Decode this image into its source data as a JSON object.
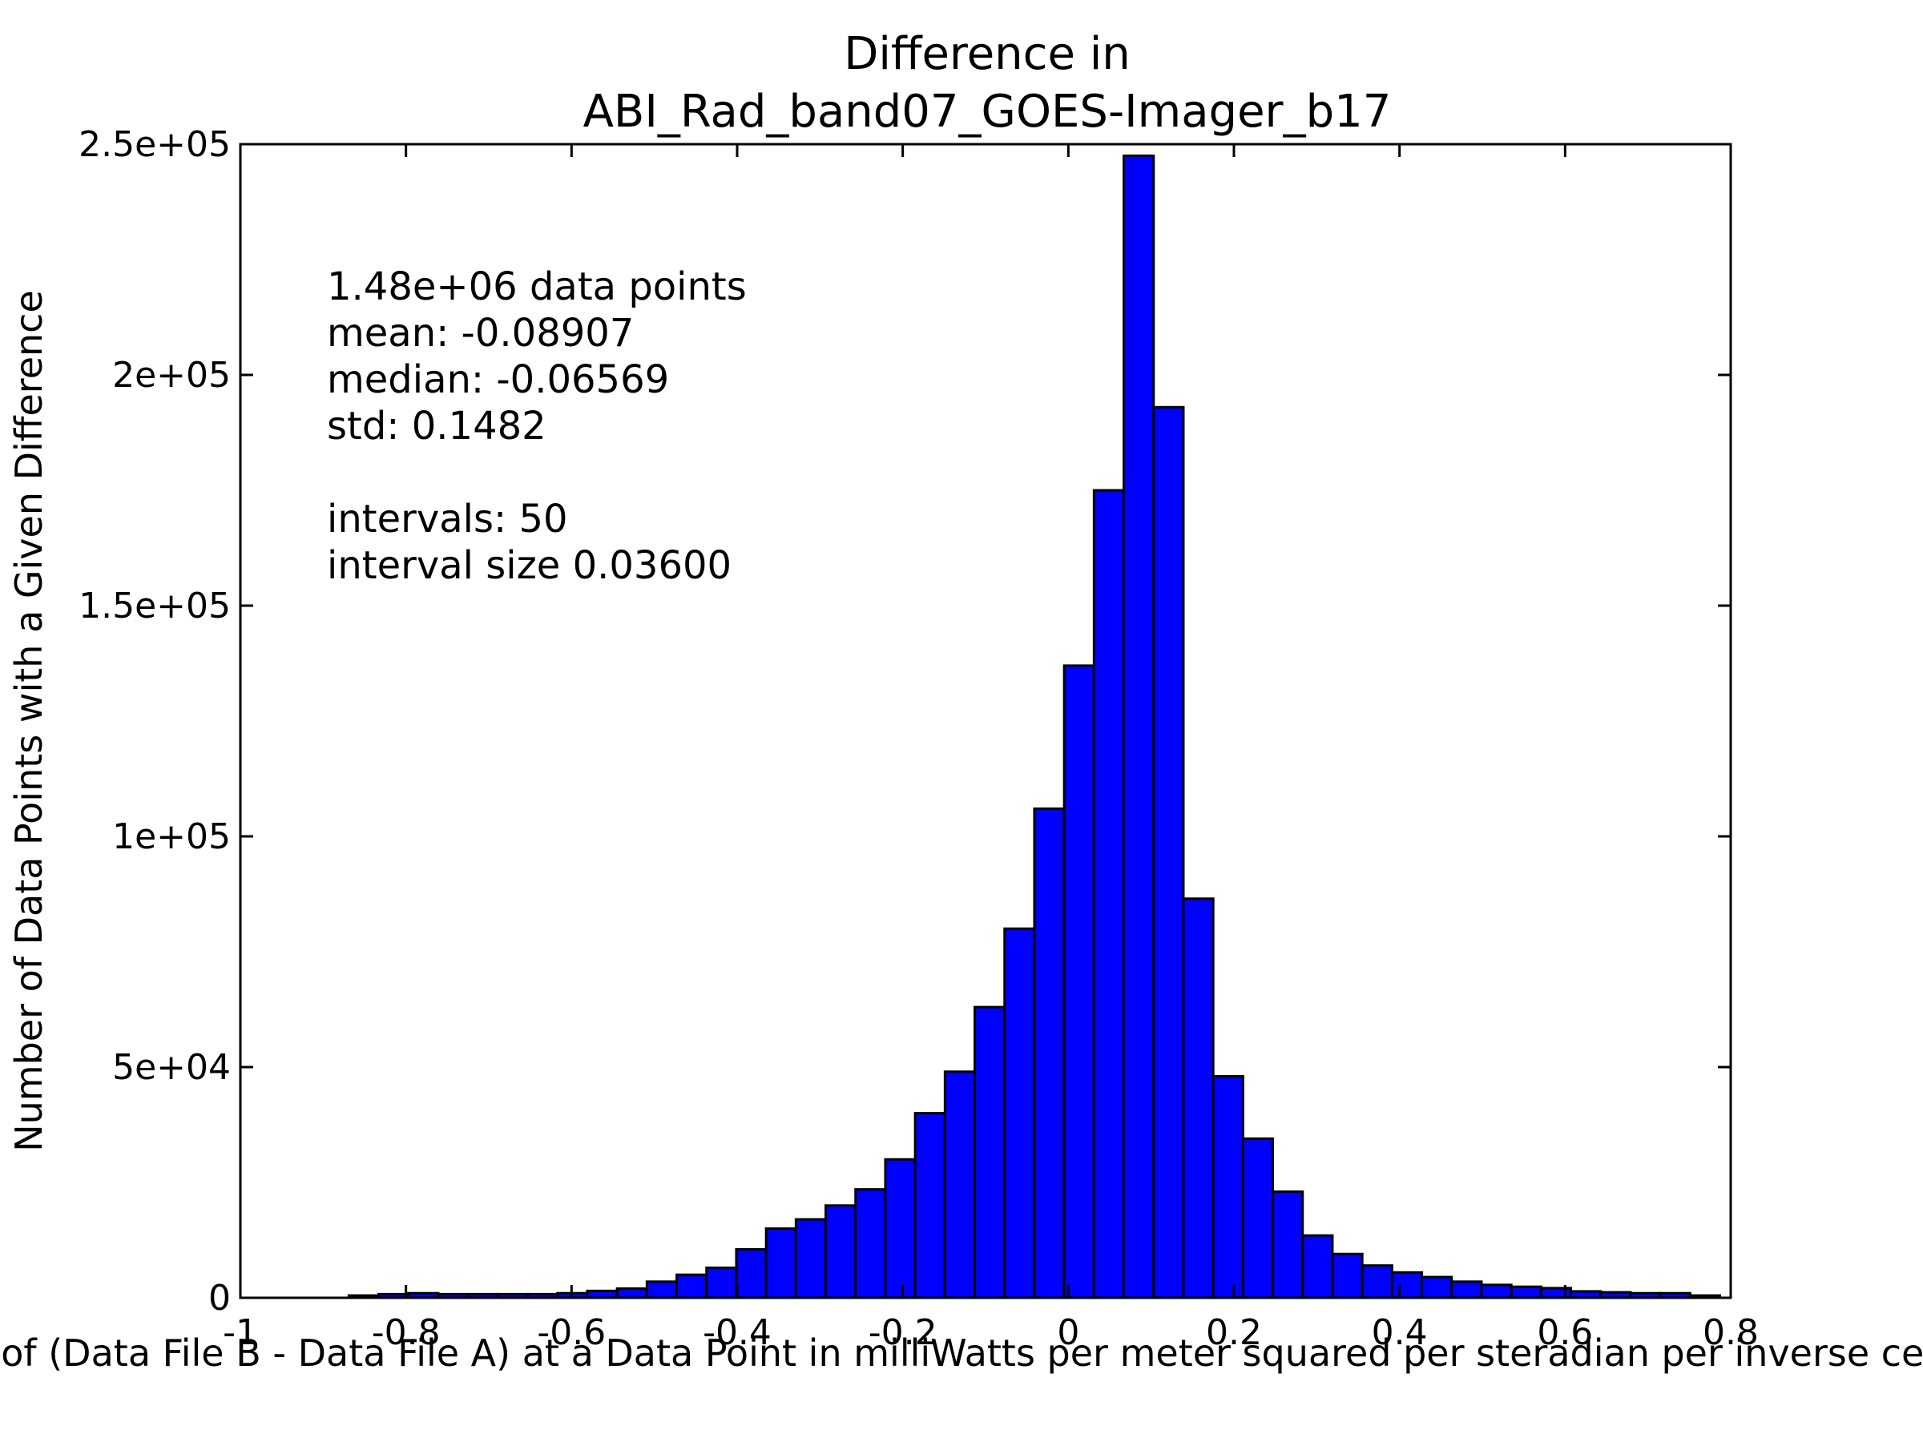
{
  "chart_data": {
    "type": "bar",
    "title_lines": [
      "Difference in",
      "ABI_Rad_band07_GOES-Imager_b17"
    ],
    "xlabel": "Value of (Data File B - Data File A) at a Data Point in milliWatts per meter squared per steradian per inverse centimeter",
    "ylabel": "Number of Data Points with a Given Difference",
    "xlim": [
      -1,
      0.8
    ],
    "ylim": [
      0,
      250000
    ],
    "x_ticks": [
      {
        "value": -1,
        "label": "-1"
      },
      {
        "value": -0.8,
        "label": "-0.8"
      },
      {
        "value": -0.6,
        "label": "-0.6"
      },
      {
        "value": -0.4,
        "label": "-0.4"
      },
      {
        "value": -0.2,
        "label": "-0.2"
      },
      {
        "value": 0,
        "label": "0"
      },
      {
        "value": 0.2,
        "label": "0.2"
      },
      {
        "value": 0.4,
        "label": "0.4"
      },
      {
        "value": 0.6,
        "label": "0.6"
      },
      {
        "value": 0.8,
        "label": "0.8"
      }
    ],
    "y_ticks": [
      {
        "value": 0,
        "label": "0"
      },
      {
        "value": 50000,
        "label": "5e+04"
      },
      {
        "value": 100000,
        "label": "1e+05"
      },
      {
        "value": 150000,
        "label": "1.5e+05"
      },
      {
        "value": 200000,
        "label": "2e+05"
      },
      {
        "value": 250000,
        "label": "2.5e+05"
      }
    ],
    "bin_start": -1.121,
    "bin_width": 0.036,
    "values": [
      0,
      0,
      0,
      0,
      0,
      0,
      0,
      500,
      800,
      1000,
      800,
      800,
      800,
      800,
      1000,
      1500,
      2000,
      3500,
      5000,
      6500,
      10500,
      15000,
      17000,
      20000,
      23500,
      30000,
      40000,
      49000,
      63000,
      80000,
      106000,
      137000,
      175000,
      247500,
      193000,
      86500,
      48000,
      34500,
      23000,
      13500,
      9500,
      7000,
      5500,
      4500,
      3500,
      2800,
      2400,
      2100,
      1400,
      1200
    ],
    "extra_tail": [
      {
        "x0": 0.679,
        "value": 1000
      },
      {
        "x0": 0.715,
        "value": 1000
      },
      {
        "x0": 0.751,
        "value": 500
      }
    ],
    "stats_lines": [
      "1.48e+06 data points",
      "mean: -0.08907",
      "median: -0.06569",
      "std: 0.1482",
      "",
      "intervals: 50",
      "interval size 0.03600"
    ],
    "grid": false,
    "legend": "none"
  }
}
